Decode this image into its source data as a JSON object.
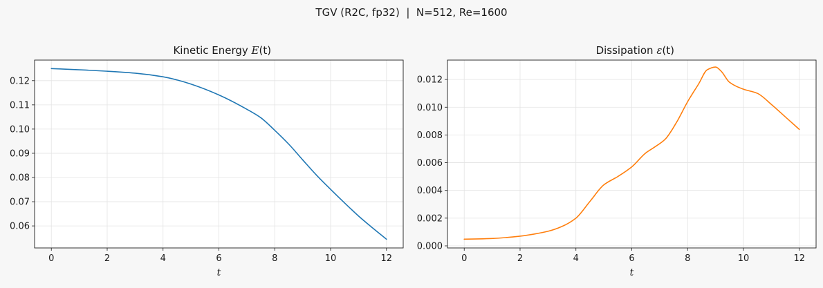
{
  "figure": {
    "suptitle": "TGV (R2C, fp32)  |  N=512, Re=1600"
  },
  "chart_data": [
    {
      "type": "line",
      "title_text": "Kinetic Energy ",
      "title_math": "E",
      "title_arg": "(t)",
      "xlabel": "t",
      "ylabel": "",
      "xlim": [
        -0.6,
        12.6
      ],
      "ylim": [
        0.0509,
        0.1285
      ],
      "xticks": [
        0,
        2,
        4,
        6,
        8,
        10,
        12
      ],
      "yticks": [
        0.06,
        0.07,
        0.08,
        0.09,
        0.1,
        0.11,
        0.12
      ],
      "ytick_labels": [
        "0.06",
        "0.07",
        "0.08",
        "0.09",
        "0.10",
        "0.11",
        "0.12"
      ],
      "grid": true,
      "series": [
        {
          "color": "#1f77b4",
          "x": [
            0,
            1,
            2,
            3,
            4,
            4.5,
            5,
            6,
            7,
            7.5,
            8,
            8.5,
            9,
            9.5,
            10,
            10.5,
            11,
            11.5,
            12
          ],
          "y": [
            0.125,
            0.1245,
            0.1239,
            0.1231,
            0.1216,
            0.1203,
            0.1186,
            0.1141,
            0.1082,
            0.1047,
            0.0995,
            0.0938,
            0.0873,
            0.0809,
            0.0751,
            0.0695,
            0.0641,
            0.0592,
            0.0545
          ]
        }
      ]
    },
    {
      "type": "line",
      "title_text": "Dissipation ",
      "title_math": "ε",
      "title_arg": "(t)",
      "xlabel": "t",
      "ylabel": "",
      "xlim": [
        -0.6,
        12.6
      ],
      "ylim": [
        -0.00015,
        0.0134
      ],
      "xticks": [
        0,
        2,
        4,
        6,
        8,
        10,
        12
      ],
      "yticks": [
        0.0,
        0.002,
        0.004,
        0.006,
        0.008,
        0.01,
        0.012
      ],
      "ytick_labels": [
        "0.000",
        "0.002",
        "0.004",
        "0.006",
        "0.008",
        "0.010",
        "0.012"
      ],
      "grid": true,
      "series": [
        {
          "color": "#ff7f0e",
          "x": [
            0,
            0.5,
            1,
            1.5,
            2,
            2.5,
            3,
            3.5,
            4,
            4.5,
            5,
            5.5,
            6,
            6.5,
            6.8,
            7.2,
            7.6,
            8,
            8.4,
            8.7,
            9,
            9.2,
            9.5,
            10,
            10.5,
            11,
            11.5,
            12
          ],
          "y": [
            0.00048,
            0.0005,
            0.00053,
            0.0006,
            0.0007,
            0.00085,
            0.00105,
            0.0014,
            0.002,
            0.0032,
            0.0044,
            0.005,
            0.0057,
            0.0067,
            0.0071,
            0.0077,
            0.0089,
            0.0104,
            0.0117,
            0.0127,
            0.0129,
            0.0126,
            0.0118,
            0.0113,
            0.011,
            0.0102,
            0.0093,
            0.0084
          ]
        }
      ]
    }
  ]
}
